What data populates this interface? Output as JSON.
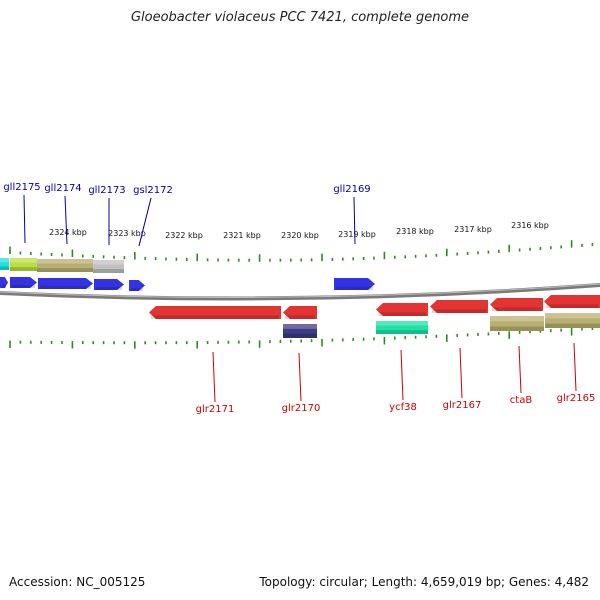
{
  "title": "Gloeobacter violaceus PCC 7421, complete genome",
  "footer": {
    "accession": "Accession: NC_005125",
    "topology": "Topology: circular; Length: 4,659,019 bp; Genes: 4,482"
  },
  "scale_ticks": [
    "2324 kbp",
    "2323 kbp",
    "2322 kbp",
    "2321 kbp",
    "2320 kbp",
    "2319 kbp",
    "2318 kbp",
    "2317 kbp",
    "2316 kbp"
  ],
  "genes_top": [
    "gll2175",
    "gll2174",
    "gll2173",
    "gsl2172",
    "gll2169"
  ],
  "genes_bottom": [
    "glr2171",
    "glr2170",
    "ycf38",
    "glr2167",
    "ctaB",
    "glr2165"
  ],
  "colors": {
    "backbone": "#7a7a7a",
    "forward_gene": "#dd0000",
    "reverse_gene": "#0000dd",
    "tick": "#2e8b22",
    "khaki_feature": "#b8b070",
    "teal_feature": "#1de3a6",
    "navy_feature": "#3c3a80",
    "gray_feature": "#c0c0c0",
    "lime_feature": "#b8e040",
    "cyan_feature": "#20e0e0",
    "top_label": "#0000aa",
    "bottom_label": "#cc0000"
  }
}
